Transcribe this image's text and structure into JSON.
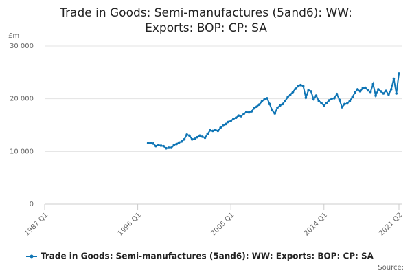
{
  "chart_data": {
    "type": "line",
    "title": "Trade in Goods: Semi-manufactures (5and6): WW: Exports: BOP: CP: SA",
    "y_unit": "£m",
    "source": "Source:",
    "x": [
      1997,
      1997.25,
      1997.5,
      1997.75,
      1998,
      1998.25,
      1998.5,
      1998.75,
      1999,
      1999.25,
      1999.5,
      1999.75,
      2000,
      2000.25,
      2000.5,
      2000.75,
      2001,
      2001.25,
      2001.5,
      2001.75,
      2002,
      2002.25,
      2002.5,
      2002.75,
      2003,
      2003.25,
      2003.5,
      2003.75,
      2004,
      2004.25,
      2004.5,
      2004.75,
      2005,
      2005.25,
      2005.5,
      2005.75,
      2006,
      2006.25,
      2006.5,
      2006.75,
      2007,
      2007.25,
      2007.5,
      2007.75,
      2008,
      2008.25,
      2008.5,
      2008.75,
      2009,
      2009.25,
      2009.5,
      2009.75,
      2010,
      2010.25,
      2010.5,
      2010.75,
      2011,
      2011.25,
      2011.5,
      2011.75,
      2012,
      2012.25,
      2012.5,
      2012.75,
      2013,
      2013.25,
      2013.5,
      2013.75,
      2014,
      2014.25,
      2014.5,
      2014.75,
      2015,
      2015.25,
      2015.5,
      2015.75,
      2016,
      2016.25,
      2016.5,
      2016.75,
      2017,
      2017.25,
      2017.5,
      2017.75,
      2018,
      2018.25,
      2018.5,
      2018.75,
      2019,
      2019.25,
      2019.5,
      2019.75,
      2020,
      2020.25,
      2020.5,
      2020.75,
      2021,
      2021.25
    ],
    "series": [
      {
        "name": "Trade in Goods: Semi-manufactures (5and6): WW: Exports: BOP: CP: SA",
        "color": "#0f75b5",
        "values": [
          11600,
          11600,
          11500,
          11000,
          11200,
          11100,
          11000,
          10600,
          10700,
          10700,
          11200,
          11400,
          11700,
          11900,
          12300,
          13200,
          13000,
          12300,
          12400,
          12700,
          13000,
          12800,
          12600,
          13300,
          14000,
          13900,
          14100,
          13900,
          14500,
          14900,
          15200,
          15600,
          15800,
          16200,
          16400,
          16800,
          16700,
          17100,
          17500,
          17400,
          17600,
          18200,
          18500,
          18900,
          19500,
          19900,
          20100,
          19000,
          17800,
          17200,
          18300,
          18700,
          19000,
          19600,
          20300,
          20800,
          21300,
          21900,
          22400,
          22600,
          22400,
          20200,
          21600,
          21400,
          19900,
          20600,
          19600,
          19200,
          18700,
          19200,
          19700,
          20000,
          20100,
          20900,
          19800,
          18400,
          19000,
          19100,
          19600,
          20300,
          21200,
          21800,
          21400,
          22000,
          22100,
          21600,
          21300,
          22800,
          20600,
          21800,
          21400,
          21000,
          21500,
          20800,
          21800,
          23800,
          21000,
          24800
        ]
      }
    ],
    "xlim": [
      1987,
      2021.25
    ],
    "xticks": [
      {
        "value": 1987,
        "label": "1987 Q1"
      },
      {
        "value": 1996,
        "label": "1996 Q1"
      },
      {
        "value": 2005,
        "label": "2005 Q1"
      },
      {
        "value": 2014,
        "label": "2014 Q1"
      },
      {
        "value": 2021.25,
        "label": "2021 Q2"
      }
    ],
    "ylim": [
      0,
      30000
    ],
    "yticks": [
      0,
      {
        "value": 10000,
        "label": "10 000"
      },
      {
        "value": 20000,
        "label": "20 000"
      },
      {
        "value": 30000,
        "label": "30 000"
      }
    ],
    "grid": true
  }
}
